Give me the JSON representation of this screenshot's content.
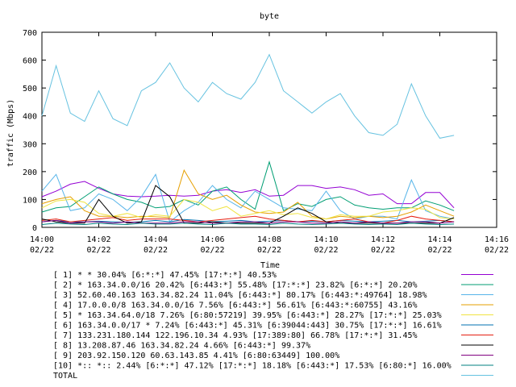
{
  "chart_data": {
    "type": "line",
    "title": "byte",
    "xlabel": "Time",
    "ylabel": "traffic (Mbps)",
    "ylim": [
      0,
      700
    ],
    "y_ticks": [
      0,
      100,
      200,
      300,
      400,
      500,
      600,
      700
    ],
    "xlim": [
      0,
      16
    ],
    "x_ticks": [
      {
        "v": 0,
        "time": "14:00",
        "date": "02/22"
      },
      {
        "v": 2,
        "time": "14:02",
        "date": "02/22"
      },
      {
        "v": 4,
        "time": "14:04",
        "date": "02/22"
      },
      {
        "v": 6,
        "time": "14:06",
        "date": "02/22"
      },
      {
        "v": 8,
        "time": "14:08",
        "date": "02/22"
      },
      {
        "v": 10,
        "time": "14:10",
        "date": "02/22"
      },
      {
        "v": 12,
        "time": "14:12",
        "date": "02/22"
      },
      {
        "v": 14,
        "time": "14:14",
        "date": "02/22"
      },
      {
        "v": 16,
        "time": "14:16",
        "date": "02/22"
      }
    ],
    "x": [
      0,
      0.5,
      1,
      1.5,
      2,
      2.5,
      3,
      3.5,
      4,
      4.5,
      5,
      5.5,
      6,
      6.5,
      7,
      7.5,
      8,
      8.5,
      9,
      9.5,
      10,
      10.5,
      11,
      11.5,
      12,
      12.5,
      13,
      13.5,
      14,
      14.5
    ],
    "series": [
      {
        "name": "[ 1] * * 30.04%  [6:*:*] 47.45% [17:*:*] 40.53%",
        "color": "#9400d3",
        "values": [
          110,
          130,
          155,
          165,
          140,
          120,
          112,
          110,
          112,
          115,
          112,
          115,
          130,
          135,
          125,
          135,
          112,
          115,
          150,
          150,
          140,
          145,
          135,
          115,
          120,
          85,
          85,
          125,
          125,
          70
        ]
      },
      {
        "name": "[ 2] * 163.34.0.0/16 20.42%  [6:443:*] 55.48% [17:*:*] 23.82% [6:*:*] 20.20%",
        "color": "#009e73",
        "values": [
          55,
          70,
          75,
          110,
          145,
          120,
          100,
          90,
          70,
          75,
          100,
          80,
          130,
          145,
          100,
          65,
          235,
          60,
          85,
          75,
          100,
          110,
          80,
          70,
          65,
          70,
          70,
          95,
          80,
          60
        ]
      },
      {
        "name": "[ 3] 52.60.40.163 163.34.82.24 11.04%  [6:443:*] 80.17% [6:443:*:49764] 18.98%",
        "color": "#56b4e9",
        "values": [
          130,
          190,
          60,
          70,
          120,
          100,
          60,
          110,
          190,
          20,
          60,
          90,
          150,
          100,
          70,
          130,
          100,
          70,
          65,
          60,
          130,
          60,
          30,
          40,
          40,
          30,
          170,
          60,
          40,
          30
        ]
      },
      {
        "name": "[ 4] 17.0.0.0/8 163.34.0.0/16 7.56%  [6:443:*] 56.61% [6:443:*:60755] 43.16%",
        "color": "#e69f00",
        "values": [
          85,
          100,
          110,
          60,
          40,
          40,
          35,
          40,
          38,
          35,
          205,
          120,
          100,
          115,
          80,
          55,
          50,
          55,
          90,
          40,
          30,
          40,
          35,
          40,
          35,
          40,
          55,
          80,
          60,
          40
        ]
      },
      {
        "name": "[ 5] * 163.34.64.0/18 7.26%  [6:80:57219] 39.95% [6:443:*] 28.27% [17:*:*] 25.03%",
        "color": "#f0e442",
        "values": [
          70,
          95,
          100,
          90,
          50,
          40,
          50,
          35,
          45,
          40,
          100,
          90,
          60,
          75,
          40,
          50,
          60,
          45,
          50,
          35,
          30,
          45,
          40,
          40,
          55,
          60,
          70,
          65,
          35,
          30
        ]
      },
      {
        "name": "[ 6] 163.34.0.0/17 * 7.24%  [6:443:*] 45.31% [6:39044:443] 30.75% [17:*:*] 16.61%",
        "color": "#0072b2",
        "values": [
          20,
          25,
          20,
          20,
          22,
          20,
          18,
          20,
          25,
          20,
          28,
          25,
          20,
          22,
          25,
          20,
          22,
          25,
          20,
          22,
          20,
          25,
          22,
          20,
          22,
          25,
          20,
          22,
          25,
          20
        ]
      },
      {
        "name": "[ 7] 133.231.180.144 122.196.10.34 4.93%  [17:389:80] 66.78% [17:*:*] 31.45%",
        "color": "#e51e10",
        "values": [
          25,
          30,
          20,
          25,
          30,
          35,
          25,
          30,
          30,
          30,
          25,
          20,
          25,
          30,
          35,
          40,
          30,
          25,
          20,
          25,
          20,
          25,
          30,
          20,
          15,
          25,
          40,
          30,
          25,
          20
        ]
      },
      {
        "name": "[ 8] 13.208.87.46 163.34.82.24 4.66%  [6:443:*] 99.37%",
        "color": "#000000",
        "values": [
          30,
          20,
          15,
          15,
          100,
          40,
          15,
          20,
          150,
          110,
          15,
          15,
          20,
          15,
          15,
          15,
          15,
          40,
          70,
          50,
          20,
          15,
          15,
          15,
          15,
          15,
          15,
          15,
          15,
          35
        ]
      },
      {
        "name": "[ 9] 203.92.150.120 60.63.143.85 4.41%  [6:80:63449] 100.00%",
        "color": "#800080",
        "values": [
          20,
          25,
          15,
          20,
          20,
          15,
          20,
          15,
          15,
          15,
          20,
          20,
          15,
          15,
          20,
          20,
          15,
          20,
          20,
          15,
          15,
          20,
          15,
          20,
          15,
          15,
          20,
          20,
          15,
          20
        ]
      },
      {
        "name": "[10] *:: *:: 2.44%  [6:*:*] 47.12% [17:*:*] 18.18% [6:443:*] 17.53% [6:80:*] 16.00%",
        "color": "#008080",
        "values": [
          10,
          15,
          12,
          10,
          15,
          12,
          10,
          15,
          12,
          12,
          15,
          12,
          10,
          15,
          12,
          12,
          10,
          15,
          12,
          10,
          12,
          15,
          12,
          10,
          12,
          10,
          15,
          12,
          10,
          12
        ]
      },
      {
        "name": "TOTAL",
        "color": "#66c2e0",
        "values": [
          400,
          580,
          410,
          380,
          490,
          390,
          365,
          490,
          520,
          590,
          500,
          450,
          520,
          480,
          460,
          520,
          620,
          490,
          450,
          410,
          450,
          480,
          400,
          340,
          330,
          370,
          515,
          400,
          320,
          330
        ]
      }
    ]
  }
}
